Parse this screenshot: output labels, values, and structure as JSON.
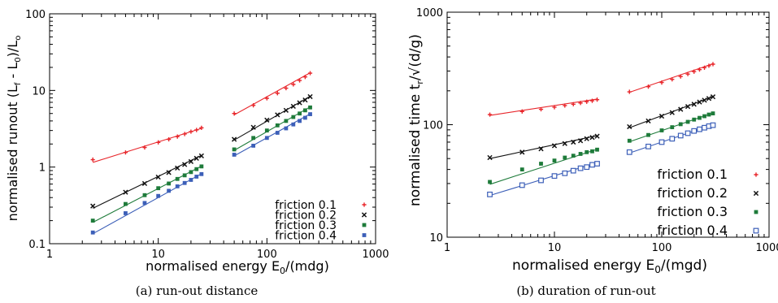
{
  "chart_data": [
    {
      "id": "a",
      "type": "scatter",
      "caption": "(a) run-out distance",
      "xlabel": "normalised energy E₀/(mdg)",
      "ylabel": "normalised runout (Lₓ - L₀)/L₀",
      "xscale": "log",
      "yscale": "log",
      "xlim": [
        1,
        1000
      ],
      "ylim": [
        0.1,
        100
      ],
      "xticks": [
        "1",
        "10",
        "100",
        "1000"
      ],
      "yticks": [
        "0.1",
        "1",
        "10",
        "100"
      ],
      "legend_position": "bottom-right",
      "series": [
        {
          "name": "friction 0.1",
          "color": "#e8262b",
          "marker": "plus",
          "x": [
            2.5,
            5,
            7.5,
            10,
            12.5,
            15,
            17.5,
            20,
            22.5,
            25,
            50,
            75,
            100,
            125,
            150,
            175,
            200,
            225,
            250
          ],
          "y": [
            1.25,
            1.55,
            1.8,
            2.1,
            2.3,
            2.5,
            2.7,
            2.9,
            3.05,
            3.25,
            5.0,
            6.4,
            7.9,
            9.2,
            10.7,
            12.0,
            13.5,
            15.0,
            16.8
          ],
          "fits": [
            {
              "x": [
                2.5,
                25
              ],
              "y": [
                1.15,
                3.2
              ]
            },
            {
              "x": [
                50,
                250
              ],
              "y": [
                4.8,
                17.0
              ]
            }
          ]
        },
        {
          "name": "friction 0.2",
          "color": "#111111",
          "marker": "x",
          "x": [
            2.5,
            5,
            7.5,
            10,
            12.5,
            15,
            17.5,
            20,
            22.5,
            25,
            50,
            75,
            100,
            125,
            150,
            175,
            200,
            225,
            250
          ],
          "y": [
            0.31,
            0.47,
            0.61,
            0.74,
            0.85,
            0.97,
            1.08,
            1.18,
            1.3,
            1.4,
            2.3,
            3.3,
            4.1,
            4.8,
            5.5,
            6.2,
            6.9,
            7.5,
            8.3
          ],
          "fits": [
            {
              "x": [
                2.5,
                25
              ],
              "y": [
                0.29,
                1.42
              ]
            },
            {
              "x": [
                50,
                250
              ],
              "y": [
                2.25,
                8.4
              ]
            }
          ]
        },
        {
          "name": "friction 0.3",
          "color": "#1e7b3a",
          "marker": "square-filled",
          "x": [
            2.5,
            5,
            7.5,
            10,
            12.5,
            15,
            17.5,
            20,
            22.5,
            25,
            50,
            75,
            100,
            125,
            150,
            175,
            200,
            225,
            250
          ],
          "y": [
            0.2,
            0.33,
            0.43,
            0.53,
            0.61,
            0.7,
            0.78,
            0.86,
            0.94,
            1.02,
            1.7,
            2.4,
            3.0,
            3.5,
            4.0,
            4.5,
            5.0,
            5.5,
            6.0
          ],
          "fits": [
            {
              "x": [
                2.5,
                25
              ],
              "y": [
                0.19,
                1.03
              ]
            },
            {
              "x": [
                50,
                250
              ],
              "y": [
                1.65,
                6.1
              ]
            }
          ]
        },
        {
          "name": "friction 0.4",
          "color": "#3c5fb8",
          "marker": "square-filled",
          "x": [
            2.5,
            5,
            7.5,
            10,
            12.5,
            15,
            17.5,
            20,
            22.5,
            25,
            50,
            75,
            100,
            125,
            150,
            175,
            200,
            225,
            250
          ],
          "y": [
            0.14,
            0.25,
            0.34,
            0.42,
            0.49,
            0.56,
            0.62,
            0.68,
            0.75,
            0.81,
            1.45,
            1.9,
            2.4,
            2.8,
            3.2,
            3.6,
            4.0,
            4.4,
            4.9
          ],
          "fits": [
            {
              "x": [
                2.5,
                25
              ],
              "y": [
                0.135,
                0.82
              ]
            },
            {
              "x": [
                50,
                250
              ],
              "y": [
                1.4,
                4.95
              ]
            }
          ]
        }
      ]
    },
    {
      "id": "b",
      "type": "scatter",
      "caption": "(b) duration of run-out",
      "xlabel": "normalised energy E₀/(mgd)",
      "ylabel": "normalised time tₓ/√(d/g)",
      "xscale": "log",
      "yscale": "log",
      "xlim": [
        1,
        1000
      ],
      "ylim": [
        10,
        1000
      ],
      "xticks": [
        "1",
        "10",
        "100",
        "1000"
      ],
      "yticks": [
        "10",
        "100",
        "1000"
      ],
      "legend_position": "right",
      "series": [
        {
          "name": "friction 0.1",
          "color": "#e8262b",
          "marker": "plus",
          "x": [
            2.5,
            5,
            7.5,
            10,
            12.5,
            15,
            17.5,
            20,
            22.5,
            25,
            50,
            75,
            100,
            125,
            150,
            175,
            200,
            225,
            250,
            275,
            300
          ],
          "y": [
            123,
            131,
            137,
            143,
            148,
            152,
            156,
            160,
            163,
            167,
            196,
            218,
            237,
            253,
            268,
            282,
            296,
            309,
            321,
            334,
            345
          ],
          "fits": [
            {
              "x": [
                2.5,
                25
              ],
              "y": [
                121,
                169
              ]
            },
            {
              "x": [
                50,
                300
              ],
              "y": [
                194,
                348
              ]
            }
          ]
        },
        {
          "name": "friction 0.2",
          "color": "#111111",
          "marker": "x",
          "x": [
            2.5,
            5,
            7.5,
            10,
            12.5,
            15,
            17.5,
            20,
            22.5,
            25,
            50,
            75,
            100,
            125,
            150,
            175,
            200,
            225,
            250,
            275,
            300
          ],
          "y": [
            51,
            57,
            61,
            65,
            68,
            70,
            72,
            75,
            77,
            79,
            96,
            108,
            119,
            128,
            137,
            145,
            152,
            159,
            165,
            171,
            177
          ],
          "fits": [
            {
              "x": [
                2.5,
                25
              ],
              "y": [
                50,
                80
              ]
            },
            {
              "x": [
                50,
                300
              ],
              "y": [
                94,
                178
              ]
            }
          ]
        },
        {
          "name": "friction 0.3",
          "color": "#1e7b3a",
          "marker": "square-filled",
          "x": [
            2.5,
            5,
            7.5,
            10,
            12.5,
            15,
            17.5,
            20,
            22.5,
            25,
            50,
            75,
            100,
            125,
            150,
            175,
            200,
            225,
            250,
            275,
            300
          ],
          "y": [
            31,
            40,
            45,
            48,
            51,
            53,
            55,
            57,
            58,
            60,
            72,
            81,
            89,
            95,
            101,
            106,
            111,
            115,
            119,
            123,
            126
          ],
          "fits": [
            {
              "x": [
                2.5,
                25
              ],
              "y": [
                29.5,
                60.5
              ]
            },
            {
              "x": [
                50,
                300
              ],
              "y": [
                70.5,
                127
              ]
            }
          ]
        },
        {
          "name": "friction 0.4",
          "color": "#3c5fb8",
          "marker": "square-open",
          "x": [
            2.5,
            5,
            7.5,
            10,
            12.5,
            15,
            17.5,
            20,
            22.5,
            25,
            50,
            75,
            100,
            125,
            150,
            175,
            200,
            225,
            250,
            275,
            300
          ],
          "y": [
            24,
            29,
            32,
            35,
            37,
            39,
            41,
            42,
            44,
            45,
            57,
            64,
            70,
            75,
            80,
            84,
            88,
            91,
            94,
            97,
            99
          ],
          "fits": [
            {
              "x": [
                2.5,
                25
              ],
              "y": [
                23.5,
                46
              ]
            },
            {
              "x": [
                50,
                300
              ],
              "y": [
                56,
                100
              ]
            }
          ]
        }
      ]
    }
  ]
}
